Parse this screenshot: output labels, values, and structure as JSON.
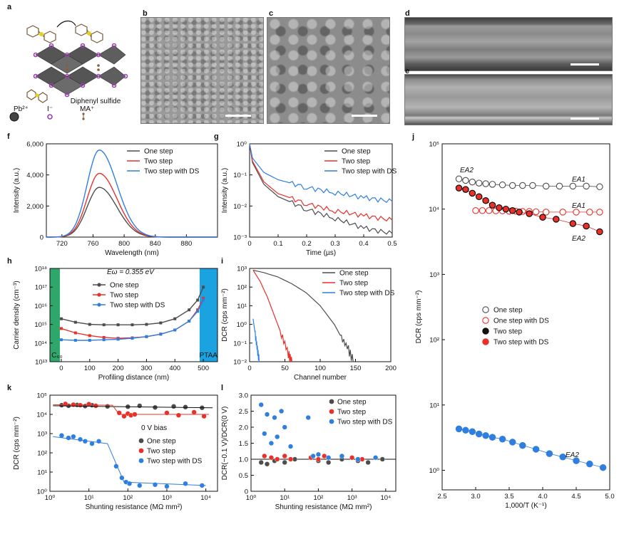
{
  "panel_labels": [
    "a",
    "b",
    "c",
    "d",
    "e",
    "f",
    "g",
    "h",
    "i",
    "j",
    "k",
    "l"
  ],
  "structure_legend": {
    "molecule": "Diphenyl sulfide",
    "items": [
      {
        "label": "Pb²⁺",
        "color": "#444444"
      },
      {
        "label": "I⁻",
        "color": "#9c3fb0"
      },
      {
        "label": "MA⁺",
        "color": "#8b5a3c"
      }
    ]
  },
  "colors": {
    "one": "#4d4d4d",
    "two": "#e8312a",
    "ds": "#2f7fe0",
    "c60": "#2ea86a",
    "ptaa": "#1aa3e0"
  },
  "chart_data": [
    {
      "panel": "f",
      "type": "line",
      "xlabel": "Wavelength (nm)",
      "ylabel": "Intensity (a.u.)",
      "xlim": [
        700,
        920
      ],
      "ylim": [
        0,
        6000
      ],
      "xticks": [
        "720",
        "760",
        "800",
        "840",
        "880"
      ],
      "yticks": [
        "0",
        "2,000",
        "4,000",
        "6,000"
      ],
      "legend": [
        "One step",
        "Two step",
        "Two step with DS"
      ],
      "series": [
        {
          "name": "One step",
          "peak_x": 768,
          "peak_y": 3200
        },
        {
          "name": "Two step",
          "peak_x": 768,
          "peak_y": 4100
        },
        {
          "name": "Two step with DS",
          "peak_x": 768,
          "peak_y": 5600
        }
      ]
    },
    {
      "panel": "g",
      "type": "line",
      "xlabel": "Time (µs)",
      "ylabel": "Intensity (a.u.)",
      "xlim": [
        0,
        0.5
      ],
      "ylim_log": [
        -3,
        0
      ],
      "xticks": [
        "0",
        "0.1",
        "0.2",
        "0.3",
        "0.4",
        "0.5"
      ],
      "yticks": [
        "10⁻³",
        "10⁻²",
        "10⁻¹",
        "10⁰"
      ],
      "legend": [
        "One step",
        "Two step",
        "Two step with DS"
      ],
      "series": [
        {
          "name": "One step",
          "x": [
            0,
            0.01,
            0.05,
            0.1,
            0.2,
            0.3,
            0.4,
            0.5
          ],
          "y": [
            1,
            0.25,
            0.05,
            0.02,
            0.008,
            0.004,
            0.002,
            0.0013
          ]
        },
        {
          "name": "Two step",
          "x": [
            0,
            0.01,
            0.05,
            0.1,
            0.2,
            0.3,
            0.4,
            0.5
          ],
          "y": [
            1,
            0.28,
            0.06,
            0.025,
            0.012,
            0.007,
            0.005,
            0.0035
          ]
        },
        {
          "name": "Two step with DS",
          "x": [
            0,
            0.01,
            0.05,
            0.1,
            0.2,
            0.3,
            0.4,
            0.5
          ],
          "y": [
            1,
            0.35,
            0.12,
            0.07,
            0.04,
            0.027,
            0.019,
            0.014
          ]
        }
      ]
    },
    {
      "panel": "h",
      "type": "line",
      "xlabel": "Profiling distance (nm)",
      "ylabel": "Carrier density (cm⁻³)",
      "xlim": [
        -40,
        550
      ],
      "ylim_log": [
        13,
        18
      ],
      "xticks": [
        "0",
        "100",
        "200",
        "300",
        "400",
        "500"
      ],
      "yticks": [
        "10¹³",
        "10¹⁴",
        "10¹⁵",
        "10¹⁶",
        "10¹⁷",
        "10¹⁸"
      ],
      "annotation": "Eω = 0.355 eV",
      "regions": [
        "C₆₀",
        "PTAA"
      ],
      "legend": [
        "One step",
        "Two step",
        "Two step with DS"
      ],
      "series": [
        {
          "name": "One step",
          "x": [
            0,
            50,
            100,
            150,
            200,
            250,
            300,
            350,
            400,
            450,
            480,
            500
          ],
          "y": [
            2000000000000000.0,
            1300000000000000.0,
            1000000000000000.0,
            950000000000000.0,
            950000000000000.0,
            950000000000000.0,
            1000000000000000.0,
            1200000000000000.0,
            2000000000000000.0,
            6000000000000000.0,
            2e+16,
            1e+17
          ]
        },
        {
          "name": "Two step",
          "x": [
            0,
            50,
            100,
            150,
            200,
            250,
            300,
            350,
            400,
            450,
            480,
            500
          ],
          "y": [
            600000000000000.0,
            350000000000000.0,
            250000000000000.0,
            200000000000000.0,
            180000000000000.0,
            190000000000000.0,
            220000000000000.0,
            300000000000000.0,
            500000000000000.0,
            1500000000000000.0,
            6000000000000000.0,
            2.5e+16
          ]
        },
        {
          "name": "Two step with DS",
          "x": [
            0,
            50,
            100,
            150,
            200,
            250,
            300,
            350,
            400,
            450,
            480,
            500
          ],
          "y": [
            150000000000000.0,
            140000000000000.0,
            140000000000000.0,
            150000000000000.0,
            160000000000000.0,
            180000000000000.0,
            220000000000000.0,
            300000000000000.0,
            500000000000000.0,
            1500000000000000.0,
            5000000000000000.0,
            2e+16
          ]
        }
      ]
    },
    {
      "panel": "i",
      "type": "line",
      "xlabel": "Channel number",
      "ylabel": "DCR (cps mm⁻²)",
      "xlim": [
        0,
        200
      ],
      "ylim_log": [
        -2,
        3
      ],
      "xticks": [
        "0",
        "50",
        "100",
        "150",
        "200"
      ],
      "yticks": [
        "10⁻²",
        "10⁻¹",
        "10⁰",
        "10¹",
        "10²",
        "10³"
      ],
      "legend": [
        "One step",
        "Two step",
        "Two step with DS"
      ],
      "series": [
        {
          "name": "One step",
          "x": [
            5,
            20,
            40,
            60,
            80,
            100,
            120,
            130,
            140,
            148
          ],
          "y": [
            800,
            600,
            350,
            150,
            50,
            10,
            1,
            0.2,
            0.05,
            0.01
          ]
        },
        {
          "name": "Two step",
          "x": [
            5,
            15,
            25,
            35,
            45,
            55,
            60
          ],
          "y": [
            800,
            200,
            30,
            3,
            0.3,
            0.03,
            0.01
          ]
        },
        {
          "name": "Two step with DS",
          "x": [
            5,
            8,
            11,
            14
          ],
          "y": [
            2,
            0.3,
            0.05,
            0.01
          ]
        }
      ]
    },
    {
      "panel": "j",
      "type": "scatter",
      "xlabel": "1,000/T (K⁻¹)",
      "ylabel": "DCR (cps mm⁻²)",
      "xlim": [
        2.5,
        5.0
      ],
      "ylim_log": [
        -0.3,
        5
      ],
      "xticks": [
        "2.5",
        "3.0",
        "3.5",
        "4.0",
        "4.5",
        "5.0"
      ],
      "yticks": [
        "10⁰",
        "10¹",
        "10²",
        "10³",
        "10⁴",
        "10⁵"
      ],
      "legend": [
        "One step",
        "One step with DS",
        "Two step",
        "Two step with DS"
      ],
      "annotations": [
        "EA2",
        "EA1",
        "EA1",
        "EA2",
        "EA2"
      ],
      "series": [
        {
          "name": "One step",
          "x": [
            2.75,
            2.85,
            2.95,
            3.05,
            3.15,
            3.25,
            3.4,
            3.55,
            3.7,
            3.85,
            4.05,
            4.25,
            4.45,
            4.65,
            4.85
          ],
          "y": [
            29000,
            27500,
            26000,
            25000,
            24500,
            24000,
            23500,
            23000,
            23000,
            23000,
            22500,
            22500,
            22500,
            22500,
            22000
          ]
        },
        {
          "name": "One step with DS",
          "x": [
            3.0,
            3.1,
            3.2,
            3.3,
            3.4,
            3.5,
            3.6,
            3.7,
            3.8,
            3.9,
            4.05,
            4.3,
            4.5,
            4.7,
            4.85
          ],
          "y": [
            9500,
            9500,
            9500,
            9400,
            9400,
            9300,
            9300,
            9200,
            9200,
            9100,
            9000,
            9000,
            9000,
            9000,
            9000
          ]
        },
        {
          "name": "Two step",
          "x": [
            2.75,
            2.85,
            2.95,
            3.05,
            3.15,
            3.25,
            3.35,
            3.45,
            3.55,
            3.65,
            3.8,
            4.0,
            4.2,
            4.45,
            4.65,
            4.85
          ],
          "y": [
            21000,
            20000,
            17500,
            15500,
            13500,
            11500,
            10500,
            10000,
            9500,
            9000,
            8500,
            7500,
            7000,
            6000,
            5500,
            4500
          ]
        },
        {
          "name": "Two step with DS",
          "x": [
            2.75,
            2.85,
            2.95,
            3.05,
            3.15,
            3.25,
            3.4,
            3.55,
            3.7,
            3.9,
            4.1,
            4.3,
            4.5,
            4.7,
            4.9
          ],
          "y": [
            4.3,
            4.1,
            3.9,
            3.6,
            3.4,
            3.2,
            3.0,
            2.7,
            2.4,
            2.1,
            1.8,
            1.6,
            1.4,
            1.25,
            1.1
          ]
        }
      ]
    },
    {
      "panel": "k",
      "type": "scatter",
      "xlabel": "Shunting resistance (MΩ mm²)",
      "ylabel": "DCR (cps mm⁻²)",
      "xlim_log": [
        0,
        4.3
      ],
      "ylim_log": [
        0,
        5
      ],
      "xticks": [
        "10⁰",
        "10¹",
        "10²",
        "10³",
        "10⁴"
      ],
      "yticks": [
        "10⁰",
        "10¹",
        "10²",
        "10³",
        "10⁴",
        "10⁵"
      ],
      "legend_title": "0 V bias",
      "legend": [
        "One step",
        "Two step",
        "Two step with DS"
      ],
      "series": [
        {
          "name": "One step",
          "x": [
            2,
            3,
            5,
            8,
            12,
            30,
            100,
            200,
            500,
            1500,
            3000,
            8000
          ],
          "y": [
            30000,
            28000,
            31000,
            27000,
            30000,
            26000,
            25000,
            28000,
            23000,
            26000,
            24000,
            22000
          ]
        },
        {
          "name": "Two step",
          "x": [
            2.5,
            4,
            6,
            10,
            15,
            60,
            80,
            100,
            120,
            150,
            1000,
            2000,
            5000,
            9000
          ],
          "y": [
            35000,
            32000,
            30000,
            34000,
            28000,
            12000,
            8000,
            11000,
            9000,
            10000,
            12000,
            9000,
            13000,
            8000
          ]
        },
        {
          "name": "Two step with DS",
          "x": [
            2,
            3,
            4,
            6,
            8,
            12,
            18,
            50,
            70,
            90,
            110,
            200,
            500,
            1000,
            3000,
            8000
          ],
          "y": [
            800,
            600,
            700,
            500,
            400,
            300,
            400,
            20,
            5,
            3,
            2.5,
            2,
            2.2,
            1.8,
            2.5,
            2
          ]
        }
      ]
    },
    {
      "panel": "l",
      "type": "scatter",
      "xlabel": "Shunting resistance (MΩ mm²)",
      "ylabel": "DCR(−0.1 V)/DCR(0 V)",
      "xlim_log": [
        0,
        4.3
      ],
      "ylim": [
        0,
        3.0
      ],
      "xticks": [
        "10⁰",
        "10¹",
        "10²",
        "10³",
        "10⁴"
      ],
      "yticks": [
        "0",
        "0.5",
        "1.0",
        "1.5",
        "2.0",
        "2.5",
        "3.0"
      ],
      "legend": [
        "One step",
        "Two step",
        "Two step with DS"
      ],
      "series": [
        {
          "name": "One step",
          "x": [
            2,
            3,
            5,
            10,
            20,
            100,
            200,
            500,
            1500,
            3000,
            8000
          ],
          "y": [
            0.9,
            0.85,
            0.95,
            0.9,
            1.0,
            0.95,
            0.9,
            1.0,
            0.95,
            0.9,
            1.0
          ]
        },
        {
          "name": "Two step",
          "x": [
            2.5,
            4,
            6,
            10,
            15,
            60,
            100,
            150,
            1000,
            2000,
            5000
          ],
          "y": [
            1.1,
            1.05,
            1.0,
            1.1,
            1.0,
            1.05,
            1.0,
            1.1,
            1.05,
            1.0,
            1.05
          ]
        },
        {
          "name": "Two step with DS",
          "x": [
            2,
            2.5,
            3,
            4,
            5,
            6,
            8,
            10,
            15,
            50,
            70,
            100,
            200,
            500,
            1500,
            5000
          ],
          "y": [
            2.7,
            1.8,
            2.4,
            1.5,
            2.3,
            1.7,
            2.5,
            2.0,
            1.4,
            2.3,
            1.1,
            1.15,
            1.05,
            1.1,
            1.0,
            1.05
          ]
        }
      ]
    }
  ]
}
